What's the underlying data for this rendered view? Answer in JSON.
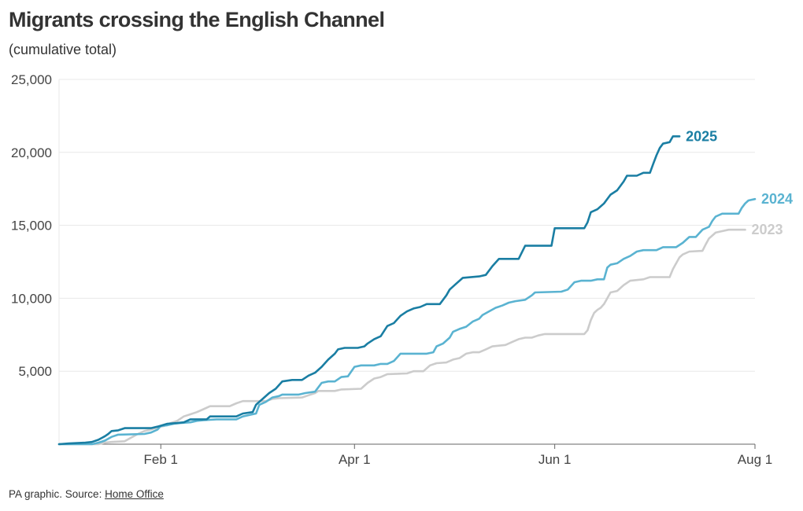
{
  "header": {
    "title": "Migrants crossing the English Channel",
    "subtitle": "(cumulative total)"
  },
  "footer": {
    "credit": "PA graphic. Source: ",
    "source_link": "Home Office"
  },
  "chart_data": {
    "type": "line",
    "title": "Migrants crossing the English Channel",
    "subtitle": "(cumulative total)",
    "xlabel": "",
    "ylabel": "",
    "x_unit": "day of year (Jan 1 = 0)",
    "xlim": [
      0,
      212
    ],
    "ylim": [
      0,
      25000
    ],
    "grid": true,
    "legend": "direct labels at line ends",
    "x_ticks": [
      {
        "value": 31,
        "label": "Feb 1"
      },
      {
        "value": 90,
        "label": "Apr 1"
      },
      {
        "value": 151,
        "label": "Jun 1"
      },
      {
        "value": 212,
        "label": "Aug 1"
      }
    ],
    "y_ticks": [
      {
        "value": 5000,
        "label": "5,000"
      },
      {
        "value": 10000,
        "label": "10,000"
      },
      {
        "value": 15000,
        "label": "15,000"
      },
      {
        "value": 20000,
        "label": "20,000"
      },
      {
        "value": 25000,
        "label": "25,000"
      }
    ],
    "series": [
      {
        "name": "2023",
        "color": "#cccccc",
        "points": [
          [
            0,
            0
          ],
          [
            12,
            0
          ],
          [
            14,
            100
          ],
          [
            16,
            150
          ],
          [
            20,
            200
          ],
          [
            22,
            450
          ],
          [
            24,
            700
          ],
          [
            26,
            900
          ],
          [
            28,
            1000
          ],
          [
            30,
            1150
          ],
          [
            32,
            1250
          ],
          [
            34,
            1450
          ],
          [
            36,
            1600
          ],
          [
            38,
            1900
          ],
          [
            40,
            2050
          ],
          [
            42,
            2200
          ],
          [
            44,
            2400
          ],
          [
            46,
            2600
          ],
          [
            52,
            2600
          ],
          [
            54,
            2800
          ],
          [
            56,
            2950
          ],
          [
            63,
            2950
          ],
          [
            65,
            3100
          ],
          [
            67,
            3150
          ],
          [
            74,
            3200
          ],
          [
            76,
            3350
          ],
          [
            78,
            3500
          ],
          [
            79,
            3650
          ],
          [
            84,
            3650
          ],
          [
            86,
            3750
          ],
          [
            92,
            3800
          ],
          [
            94,
            4200
          ],
          [
            96,
            4500
          ],
          [
            98,
            4600
          ],
          [
            100,
            4800
          ],
          [
            106,
            4850
          ],
          [
            108,
            5000
          ],
          [
            111,
            5000
          ],
          [
            113,
            5400
          ],
          [
            115,
            5550
          ],
          [
            118,
            5600
          ],
          [
            120,
            5800
          ],
          [
            122,
            5900
          ],
          [
            124,
            6200
          ],
          [
            126,
            6300
          ],
          [
            128,
            6300
          ],
          [
            130,
            6500
          ],
          [
            132,
            6700
          ],
          [
            134,
            6750
          ],
          [
            136,
            6800
          ],
          [
            138,
            7000
          ],
          [
            140,
            7200
          ],
          [
            142,
            7300
          ],
          [
            144,
            7300
          ],
          [
            146,
            7450
          ],
          [
            148,
            7550
          ],
          [
            160,
            7550
          ],
          [
            161,
            7800
          ],
          [
            162,
            8500
          ],
          [
            163,
            9000
          ],
          [
            164,
            9200
          ],
          [
            165,
            9350
          ],
          [
            166,
            9600
          ],
          [
            167,
            10000
          ],
          [
            168,
            10400
          ],
          [
            170,
            10500
          ],
          [
            172,
            10900
          ],
          [
            174,
            11200
          ],
          [
            178,
            11300
          ],
          [
            180,
            11450
          ],
          [
            186,
            11450
          ],
          [
            187,
            12000
          ],
          [
            188,
            12400
          ],
          [
            189,
            12800
          ],
          [
            190,
            13000
          ],
          [
            192,
            13200
          ],
          [
            196,
            13250
          ],
          [
            197,
            13700
          ],
          [
            198,
            14100
          ],
          [
            199,
            14300
          ],
          [
            200,
            14500
          ],
          [
            202,
            14600
          ],
          [
            204,
            14700
          ],
          [
            209,
            14700
          ]
        ]
      },
      {
        "name": "2024",
        "color": "#5ab3d1",
        "points": [
          [
            0,
            0
          ],
          [
            10,
            0
          ],
          [
            12,
            100
          ],
          [
            14,
            250
          ],
          [
            16,
            500
          ],
          [
            18,
            650
          ],
          [
            26,
            700
          ],
          [
            28,
            800
          ],
          [
            30,
            1000
          ],
          [
            31,
            1250
          ],
          [
            33,
            1300
          ],
          [
            35,
            1400
          ],
          [
            37,
            1450
          ],
          [
            40,
            1500
          ],
          [
            42,
            1600
          ],
          [
            44,
            1650
          ],
          [
            48,
            1700
          ],
          [
            54,
            1700
          ],
          [
            56,
            1900
          ],
          [
            58,
            2000
          ],
          [
            60,
            2100
          ],
          [
            61,
            2700
          ],
          [
            63,
            2900
          ],
          [
            65,
            3200
          ],
          [
            67,
            3300
          ],
          [
            68,
            3400
          ],
          [
            73,
            3400
          ],
          [
            75,
            3500
          ],
          [
            78,
            3600
          ],
          [
            80,
            4200
          ],
          [
            82,
            4300
          ],
          [
            84,
            4300
          ],
          [
            86,
            4600
          ],
          [
            88,
            4650
          ],
          [
            90,
            5300
          ],
          [
            92,
            5400
          ],
          [
            96,
            5400
          ],
          [
            98,
            5500
          ],
          [
            100,
            5500
          ],
          [
            102,
            5700
          ],
          [
            104,
            6200
          ],
          [
            112,
            6200
          ],
          [
            114,
            6300
          ],
          [
            115,
            6700
          ],
          [
            117,
            6900
          ],
          [
            119,
            7300
          ],
          [
            120,
            7700
          ],
          [
            122,
            7900
          ],
          [
            124,
            8050
          ],
          [
            126,
            8400
          ],
          [
            128,
            8600
          ],
          [
            129,
            8850
          ],
          [
            131,
            9100
          ],
          [
            133,
            9350
          ],
          [
            135,
            9500
          ],
          [
            137,
            9700
          ],
          [
            139,
            9800
          ],
          [
            142,
            9900
          ],
          [
            144,
            10200
          ],
          [
            145,
            10400
          ],
          [
            153,
            10450
          ],
          [
            155,
            10600
          ],
          [
            157,
            11100
          ],
          [
            159,
            11200
          ],
          [
            162,
            11200
          ],
          [
            164,
            11300
          ],
          [
            166,
            11300
          ],
          [
            167,
            12100
          ],
          [
            168,
            12300
          ],
          [
            170,
            12400
          ],
          [
            172,
            12700
          ],
          [
            174,
            12900
          ],
          [
            176,
            13200
          ],
          [
            178,
            13300
          ],
          [
            182,
            13300
          ],
          [
            184,
            13500
          ],
          [
            188,
            13500
          ],
          [
            190,
            13800
          ],
          [
            192,
            14200
          ],
          [
            194,
            14200
          ],
          [
            196,
            14700
          ],
          [
            198,
            14900
          ],
          [
            199,
            15300
          ],
          [
            200,
            15600
          ],
          [
            202,
            15800
          ],
          [
            207,
            15800
          ],
          [
            208,
            16200
          ],
          [
            209,
            16500
          ],
          [
            210,
            16700
          ],
          [
            212,
            16800
          ]
        ]
      },
      {
        "name": "2025",
        "color": "#1a7ea3",
        "points": [
          [
            0,
            0
          ],
          [
            3,
            50
          ],
          [
            8,
            100
          ],
          [
            10,
            150
          ],
          [
            12,
            300
          ],
          [
            14,
            550
          ],
          [
            15,
            700
          ],
          [
            16,
            900
          ],
          [
            18,
            950
          ],
          [
            20,
            1100
          ],
          [
            28,
            1100
          ],
          [
            30,
            1200
          ],
          [
            33,
            1400
          ],
          [
            36,
            1450
          ],
          [
            38,
            1500
          ],
          [
            40,
            1700
          ],
          [
            45,
            1700
          ],
          [
            46,
            1900
          ],
          [
            54,
            1900
          ],
          [
            56,
            2100
          ],
          [
            59,
            2200
          ],
          [
            60,
            2700
          ],
          [
            62,
            3100
          ],
          [
            64,
            3500
          ],
          [
            66,
            3800
          ],
          [
            68,
            4300
          ],
          [
            71,
            4400
          ],
          [
            74,
            4400
          ],
          [
            76,
            4700
          ],
          [
            78,
            4900
          ],
          [
            80,
            5300
          ],
          [
            82,
            5800
          ],
          [
            84,
            6200
          ],
          [
            85,
            6500
          ],
          [
            87,
            6600
          ],
          [
            91,
            6600
          ],
          [
            93,
            6700
          ],
          [
            94,
            6900
          ],
          [
            96,
            7200
          ],
          [
            98,
            7400
          ],
          [
            100,
            8100
          ],
          [
            102,
            8300
          ],
          [
            104,
            8800
          ],
          [
            106,
            9100
          ],
          [
            108,
            9300
          ],
          [
            110,
            9400
          ],
          [
            112,
            9600
          ],
          [
            116,
            9600
          ],
          [
            118,
            10200
          ],
          [
            119,
            10600
          ],
          [
            121,
            11000
          ],
          [
            123,
            11400
          ],
          [
            128,
            11500
          ],
          [
            130,
            11600
          ],
          [
            132,
            12200
          ],
          [
            134,
            12700
          ],
          [
            140,
            12700
          ],
          [
            142,
            13600
          ],
          [
            150,
            13600
          ],
          [
            151,
            14800
          ],
          [
            160,
            14800
          ],
          [
            161,
            15200
          ],
          [
            162,
            15900
          ],
          [
            164,
            16100
          ],
          [
            166,
            16500
          ],
          [
            168,
            17100
          ],
          [
            170,
            17400
          ],
          [
            172,
            18000
          ],
          [
            173,
            18400
          ],
          [
            176,
            18400
          ],
          [
            178,
            18600
          ],
          [
            180,
            18600
          ],
          [
            181,
            19200
          ],
          [
            182,
            19800
          ],
          [
            183,
            20300
          ],
          [
            184,
            20600
          ],
          [
            186,
            20700
          ],
          [
            187,
            21100
          ],
          [
            189,
            21100
          ]
        ]
      }
    ]
  }
}
